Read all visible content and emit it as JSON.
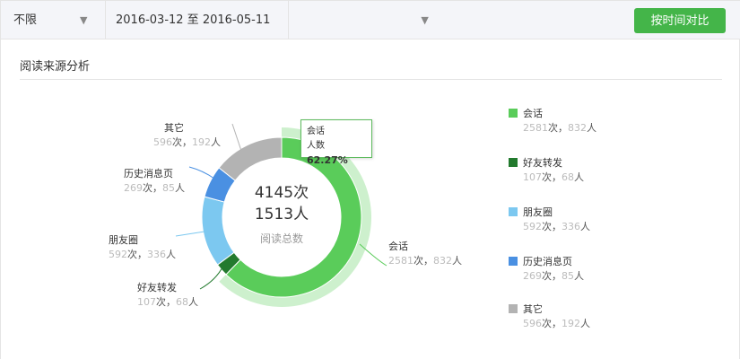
{
  "filters": {
    "channel": "不限",
    "date_range": "2016-03-12 至 2016-05-11",
    "compare_button": "按时间对比"
  },
  "section_title": "阅读来源分析",
  "chart_data": {
    "type": "pie",
    "donut": true,
    "center": {
      "total_reads": "4145次",
      "total_users": "1513人",
      "caption": "阅读总数"
    },
    "tooltip": {
      "name": "会话",
      "label": "人数",
      "value": "62.27%"
    },
    "highlighted": "会话",
    "legend_position": "right",
    "slices": [
      {
        "name": "会话",
        "reads": 2581,
        "users": 832,
        "reads_text": "2581",
        "users_text": "832",
        "color": "#5acc5a"
      },
      {
        "name": "好友转发",
        "reads": 107,
        "users": 68,
        "reads_text": "107",
        "users_text": "68",
        "color": "#237a2e"
      },
      {
        "name": "朋友圈",
        "reads": 592,
        "users": 336,
        "reads_text": "592",
        "users_text": "336",
        "color": "#7cc8f0"
      },
      {
        "name": "历史消息页",
        "reads": 269,
        "users": 85,
        "reads_text": "269",
        "users_text": "85",
        "color": "#4a90e2"
      },
      {
        "name": "其它",
        "reads": 596,
        "users": 192,
        "reads_text": "596",
        "users_text": "192",
        "color": "#b3b3b3"
      }
    ],
    "unit_reads": "次，",
    "unit_users": "人"
  }
}
